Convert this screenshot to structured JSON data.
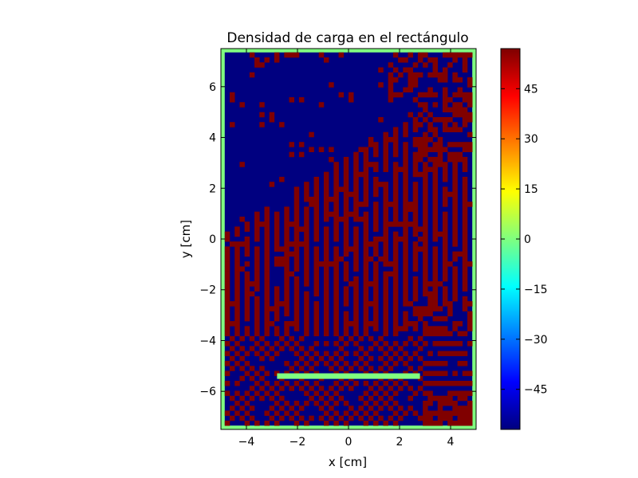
{
  "chart_data": {
    "type": "heatmap",
    "title": "Densidad de carga en el rectángulo",
    "xlabel": "x [cm]",
    "ylabel": "y [cm]",
    "xlim": [
      -5,
      5
    ],
    "ylim": [
      -7.5,
      7.5
    ],
    "x_ticks": [
      -4,
      -2,
      0,
      2,
      4
    ],
    "x_tick_labels": [
      "−4",
      "−2",
      "0",
      "2",
      "4"
    ],
    "y_ticks": [
      -6,
      -4,
      -2,
      0,
      2,
      4,
      6
    ],
    "y_tick_labels": [
      "−6",
      "−4",
      "−2",
      "0",
      "2",
      "4",
      "6"
    ],
    "grid": false,
    "colormap": "jet",
    "colorbar": {
      "vmin": -57,
      "vmax": 57,
      "ticks": [
        -45,
        -30,
        -15,
        0,
        15,
        30,
        45
      ],
      "tick_labels": [
        "−45",
        "−30",
        "−15",
        "0",
        "15",
        "30",
        "45"
      ]
    },
    "grid_size": {
      "nx": 50,
      "ny": 75
    },
    "boundary": {
      "x": [
        -4.85,
        4.85
      ],
      "y": [
        -7.35,
        7.35
      ],
      "value": 0
    },
    "blue_value": -57,
    "red_value": 57,
    "conductor": {
      "x": [
        -2.8,
        2.8
      ],
      "y": -5.4,
      "value": 0
    },
    "regions": {
      "background": {
        "value": -57
      },
      "stripes": {
        "x": [
          -4.85,
          4.85
        ],
        "y": [
          -3.6,
          7.35
        ],
        "description_pattern": "diagonal stripes of value 57"
      },
      "checker": {
        "x": [
          -4.85,
          4.85
        ],
        "y": [
          -7.35,
          -3.6
        ],
        "description_pattern": "checkerboard of values -57 and 57"
      }
    }
  }
}
